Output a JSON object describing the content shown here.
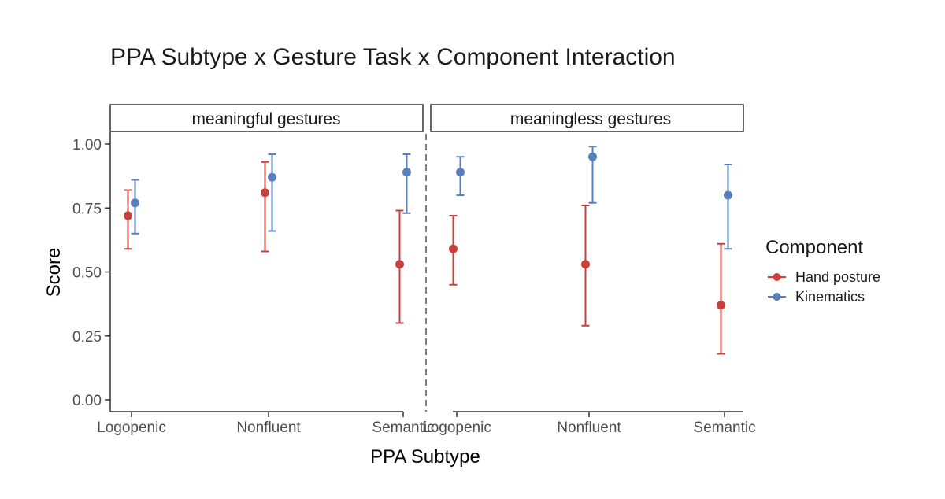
{
  "chart_data": {
    "type": "scatter",
    "title": "PPA Subtype x Gesture Task x Component Interaction",
    "xlabel": "PPA Subtype",
    "ylabel": "Score",
    "ylim": [
      0,
      1
    ],
    "y_ticks": [
      "0.00",
      "0.25",
      "0.50",
      "0.75",
      "1.00"
    ],
    "categories": [
      "Logopenic",
      "Nonfluent",
      "Semantic"
    ],
    "legend": {
      "title": "Component",
      "placement": "right",
      "entries": [
        "Hand posture",
        "Kinematics"
      ]
    },
    "colors": {
      "Hand posture": "#c9403a",
      "Kinematics": "#5a80bc"
    },
    "facets": [
      {
        "label": "meaningful gestures",
        "series": [
          {
            "name": "Hand posture",
            "values": [
              0.72,
              0.81,
              0.53
            ],
            "lower": [
              0.59,
              0.58,
              0.3
            ],
            "upper": [
              0.82,
              0.93,
              0.74
            ]
          },
          {
            "name": "Kinematics",
            "values": [
              0.77,
              0.87,
              0.89
            ],
            "lower": [
              0.65,
              0.66,
              0.73
            ],
            "upper": [
              0.86,
              0.96,
              0.96
            ]
          }
        ]
      },
      {
        "label": "meaningless gestures",
        "series": [
          {
            "name": "Hand posture",
            "values": [
              0.59,
              0.53,
              0.37
            ],
            "lower": [
              0.45,
              0.29,
              0.18
            ],
            "upper": [
              0.72,
              0.76,
              0.61
            ]
          },
          {
            "name": "Kinematics",
            "values": [
              0.89,
              0.95,
              0.8
            ],
            "lower": [
              0.8,
              0.77,
              0.59
            ],
            "upper": [
              0.95,
              0.99,
              0.92
            ]
          }
        ]
      }
    ]
  }
}
